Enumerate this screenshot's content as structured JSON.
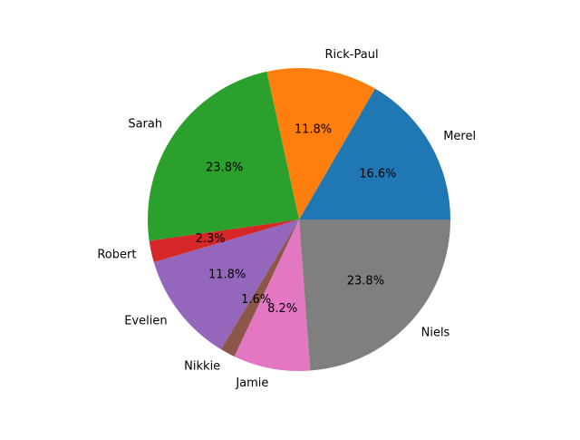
{
  "chart_data": {
    "type": "pie",
    "start_angle_deg": 0,
    "direction": "counterclockwise",
    "legend": "none",
    "slices": [
      {
        "label": "Merel",
        "value": 16.6,
        "pct_label": "16.6%",
        "color": "#1f77b4"
      },
      {
        "label": "Rick-Paul",
        "value": 11.8,
        "pct_label": "11.8%",
        "color": "#ff7f0e"
      },
      {
        "label": "Sarah",
        "value": 23.8,
        "pct_label": "23.8%",
        "color": "#2ca02c"
      },
      {
        "label": "Robert",
        "value": 2.3,
        "pct_label": "2.3%",
        "color": "#d62728"
      },
      {
        "label": "Evelien",
        "value": 11.8,
        "pct_label": "11.8%",
        "color": "#9467bd"
      },
      {
        "label": "Nikkie",
        "value": 1.6,
        "pct_label": "1.6%",
        "color": "#8c564b"
      },
      {
        "label": "Jamie",
        "value": 8.2,
        "pct_label": "8.2%",
        "color": "#e377c2"
      },
      {
        "label": "Niels",
        "value": 23.8,
        "pct_label": "23.8%",
        "color": "#7f7f7f"
      }
    ]
  }
}
